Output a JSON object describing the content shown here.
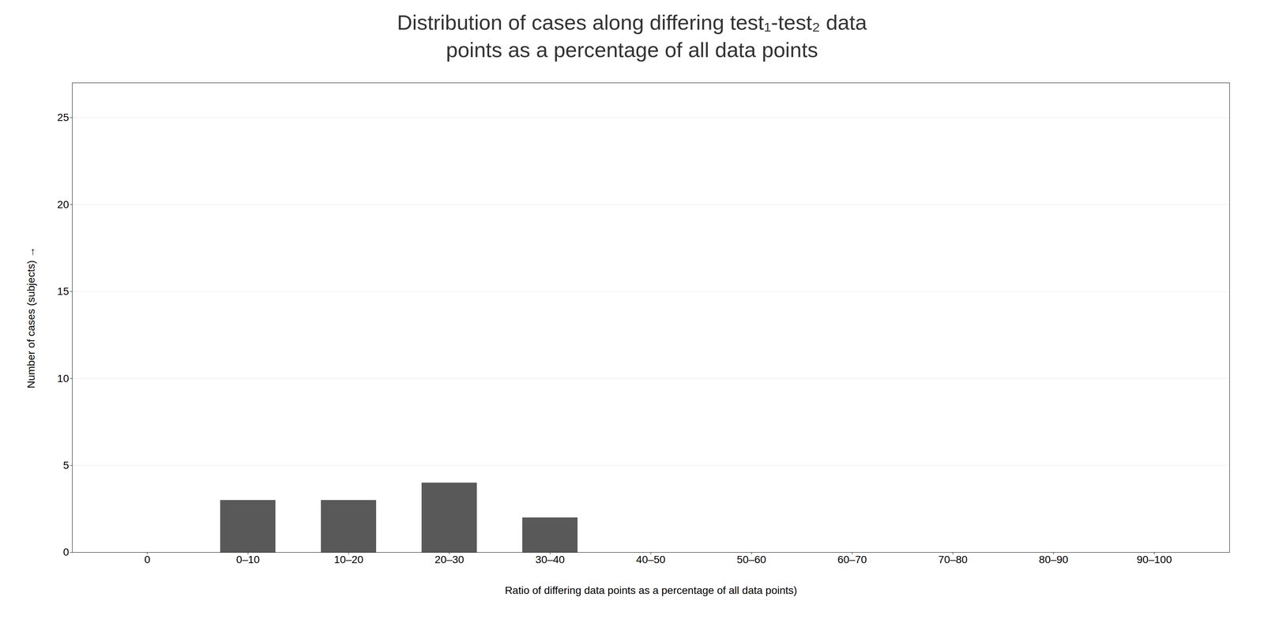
{
  "chart_data": {
    "type": "bar",
    "title": "Distribution of cases along differing test₁-test₂ data\npoints as a percentage of all data points",
    "xlabel": "Ratio of differing data points as a percentage of all data points)",
    "ylabel": "Number of cases (subjects)",
    "categories": [
      "0",
      "0–10",
      "10–20",
      "20–30",
      "30–40",
      "40–50",
      "50–60",
      "60–70",
      "70–80",
      "80–90",
      "90–100"
    ],
    "values": [
      0,
      3,
      3,
      4,
      2,
      0,
      0,
      0,
      0,
      0,
      0
    ],
    "color": "#595959",
    "ylim": [
      0,
      27
    ],
    "yticks": [
      0,
      5,
      10,
      15,
      20,
      25
    ],
    "grid": true
  }
}
